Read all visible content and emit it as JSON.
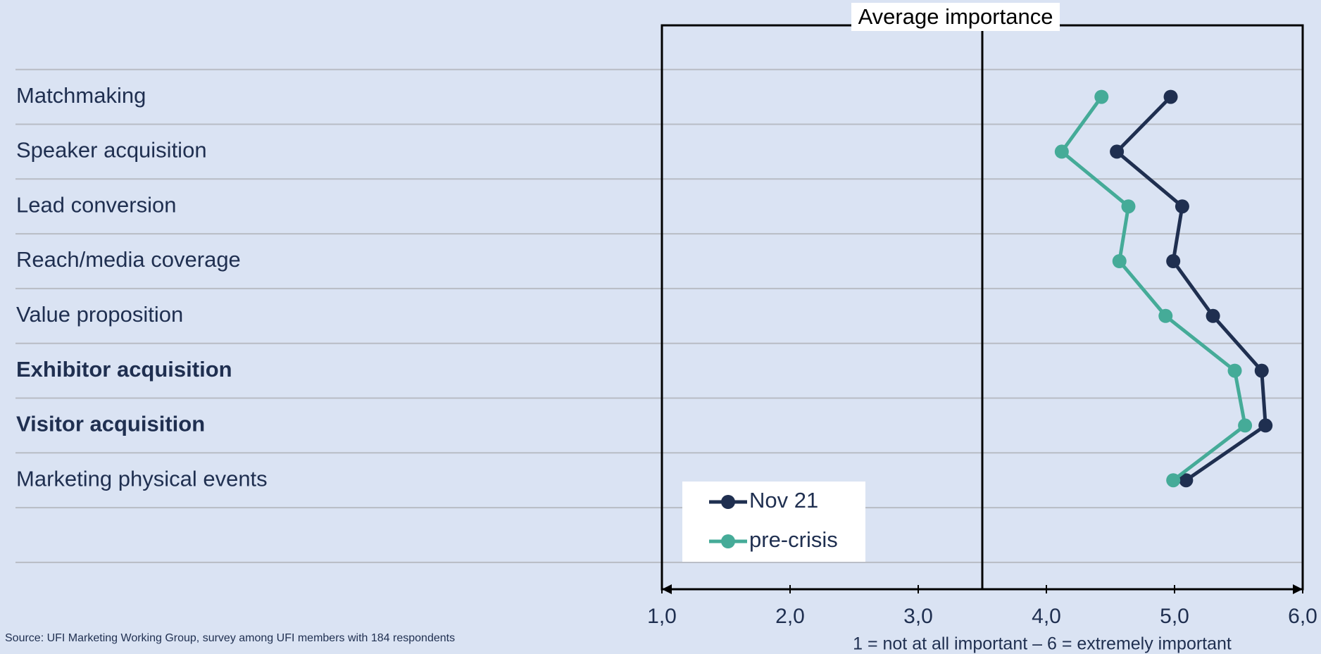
{
  "chart_data": {
    "type": "line",
    "title": "Average importance",
    "x_label": "1 = not at all important – 6 = extremely important",
    "source": "Source: UFI Marketing Working Group, survey among UFI members with 184 respondents",
    "categories": [
      "Matchmaking",
      "Speaker acquisition",
      "Lead conversion",
      "Reach/media coverage",
      "Value proposition",
      "Exhibitor acquisition",
      "Visitor acquisition",
      "Marketing physical events"
    ],
    "bold": [
      false,
      false,
      false,
      false,
      false,
      true,
      true,
      false
    ],
    "series": [
      {
        "name": "Nov 21",
        "color": "#1f2f50",
        "values": [
          4.97,
          4.55,
          5.06,
          4.99,
          5.3,
          5.68,
          5.71,
          5.09
        ]
      },
      {
        "name": "pre-crisis",
        "color": "#45ab98",
        "values": [
          4.43,
          4.12,
          4.64,
          4.57,
          4.93,
          5.47,
          5.55,
          4.99
        ]
      }
    ],
    "xlim": [
      1,
      6
    ],
    "xticks": [
      {
        "value": 1,
        "label": "1,0"
      },
      {
        "value": 2,
        "label": "2,0"
      },
      {
        "value": 3,
        "label": "3,0"
      },
      {
        "value": 4,
        "label": "4,0"
      },
      {
        "value": 5,
        "label": "5,0"
      },
      {
        "value": 6,
        "label": "6,0"
      }
    ],
    "reference_x": 3.5
  }
}
